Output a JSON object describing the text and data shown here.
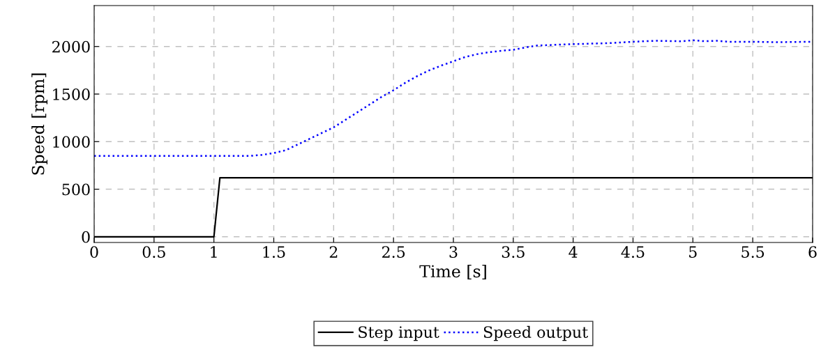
{
  "chart_data": {
    "type": "line",
    "xlabel": "Time [s]",
    "ylabel": "Speed [rpm]",
    "xlim": [
      0,
      6
    ],
    "ylim": [
      -60,
      2430
    ],
    "xticks": [
      0,
      0.5,
      1,
      1.5,
      2,
      2.5,
      3,
      3.5,
      4,
      4.5,
      5,
      5.5,
      6
    ],
    "yticks": [
      0,
      500,
      1000,
      1500,
      2000
    ],
    "grid": true,
    "legend": "bottom",
    "series": [
      {
        "name": "Step input",
        "color": "#000000",
        "line_style": "solid",
        "x": [
          0,
          1,
          1.05,
          6
        ],
        "values": [
          0,
          0,
          620,
          620
        ]
      },
      {
        "name": "Speed output",
        "color": "#0000ff",
        "line_style": "dotted",
        "x": [
          0,
          0.5,
          1,
          1.3,
          1.4,
          1.5,
          1.6,
          1.7,
          1.8,
          1.9,
          2.0,
          2.1,
          2.2,
          2.3,
          2.4,
          2.5,
          2.6,
          2.7,
          2.8,
          2.9,
          3.0,
          3.1,
          3.2,
          3.3,
          3.4,
          3.5,
          3.6,
          3.7,
          3.8,
          4.0,
          4.3,
          4.5,
          4.7,
          4.9,
          5.0,
          5.1,
          5.2,
          5.3,
          5.5,
          5.7,
          6.0
        ],
        "values": [
          850,
          850,
          850,
          850,
          860,
          880,
          910,
          970,
          1030,
          1090,
          1150,
          1230,
          1310,
          1390,
          1470,
          1540,
          1620,
          1690,
          1750,
          1800,
          1845,
          1890,
          1920,
          1940,
          1955,
          1965,
          1990,
          2010,
          2015,
          2025,
          2035,
          2050,
          2060,
          2055,
          2065,
          2055,
          2060,
          2050,
          2050,
          2045,
          2050
        ]
      }
    ]
  }
}
